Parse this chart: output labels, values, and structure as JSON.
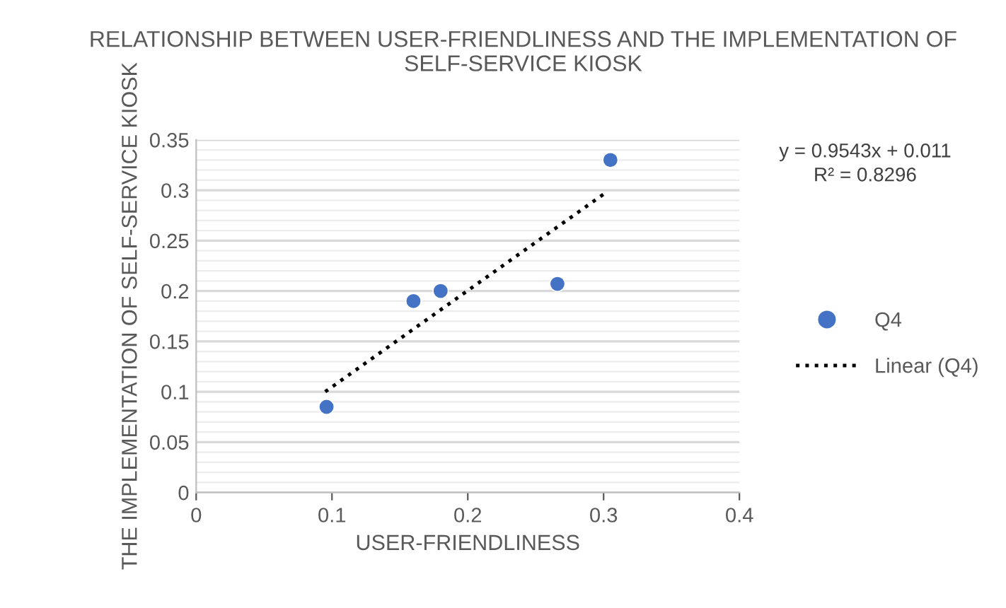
{
  "chart_data": {
    "type": "scatter",
    "title": "RELATIONSHIP BETWEEN USER-FRIENDLINESS AND THE IMPLEMENTATION OF SELF-SERVICE KIOSK",
    "xlabel": "USER-FRIENDLINESS",
    "ylabel": "THE IMPLEMENTATION OF SELF-SERVICE KIOSK",
    "series": [
      {
        "name": "Q4",
        "color": "#4472c4",
        "x": [
          0.096,
          0.16,
          0.18,
          0.266,
          0.305
        ],
        "values": [
          0.085,
          0.19,
          0.2,
          0.207,
          0.33
        ],
        "marker": "circle"
      },
      {
        "name": "Linear (Q4)",
        "type": "line",
        "color": "#000000",
        "x": [
          0.095,
          0.302
        ],
        "values": [
          0.1,
          0.298
        ],
        "line_style": "dotted",
        "marker": "none"
      }
    ],
    "annotations": [
      "y = 0.9543x + 0.011\nR² = 0.8296"
    ],
    "xlim": [
      0,
      0.4
    ],
    "xticks": [
      0,
      0.1,
      0.2,
      0.3,
      0.4
    ],
    "ylim": [
      0,
      0.35
    ],
    "yticks": [
      0,
      0.05,
      0.1,
      0.15,
      0.2,
      0.25,
      0.3,
      0.35
    ],
    "grid": "y",
    "legend": "right"
  }
}
